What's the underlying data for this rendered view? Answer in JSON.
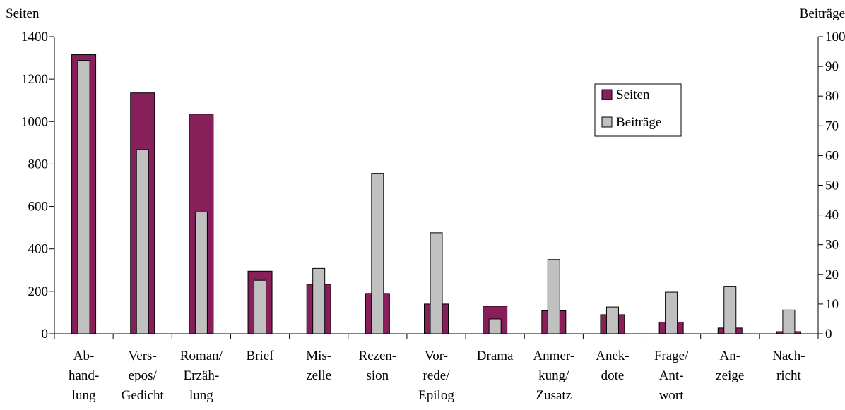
{
  "chart_data": {
    "type": "bar",
    "left_axis_title": "Seiten",
    "right_axis_title": "Beiträge",
    "left_ylim": [
      0,
      1400
    ],
    "left_ticks": [
      0,
      200,
      400,
      600,
      800,
      1000,
      1200,
      1400
    ],
    "right_ylim": [
      0,
      100
    ],
    "right_ticks": [
      0,
      10,
      20,
      30,
      40,
      50,
      60,
      70,
      80,
      90,
      100
    ],
    "categories": [
      [
        "Ab-",
        "hand-",
        "lung"
      ],
      [
        "Vers-",
        "epos/",
        "Gedicht"
      ],
      [
        "Roman/",
        "Erzäh-",
        "lung"
      ],
      [
        "Brief"
      ],
      [
        "Mis-",
        "zelle"
      ],
      [
        "Rezen-",
        "sion"
      ],
      [
        "Vor-",
        "rede/",
        "Epilog"
      ],
      [
        "Drama"
      ],
      [
        "Anmer-",
        "kung/",
        "Zusatz"
      ],
      [
        "Anek-",
        "dote"
      ],
      [
        "Frage/",
        "Ant-",
        "wort"
      ],
      [
        "An-",
        "zeige"
      ],
      [
        "Nach-",
        "richt"
      ]
    ],
    "series": [
      {
        "name": "Seiten",
        "axis": "left",
        "color": "#87205a",
        "values": [
          1315,
          1135,
          1035,
          295,
          233,
          190,
          140,
          130,
          108,
          90,
          55,
          27,
          10
        ]
      },
      {
        "name": "Beiträge",
        "axis": "right",
        "color": "#c0c0c0",
        "values": [
          92,
          62,
          41,
          18,
          22,
          54,
          34,
          5,
          25,
          9,
          14,
          16,
          8
        ]
      }
    ],
    "legend": {
      "position": "top-right",
      "items": [
        "Seiten",
        "Beiträge"
      ]
    },
    "grid": false
  }
}
